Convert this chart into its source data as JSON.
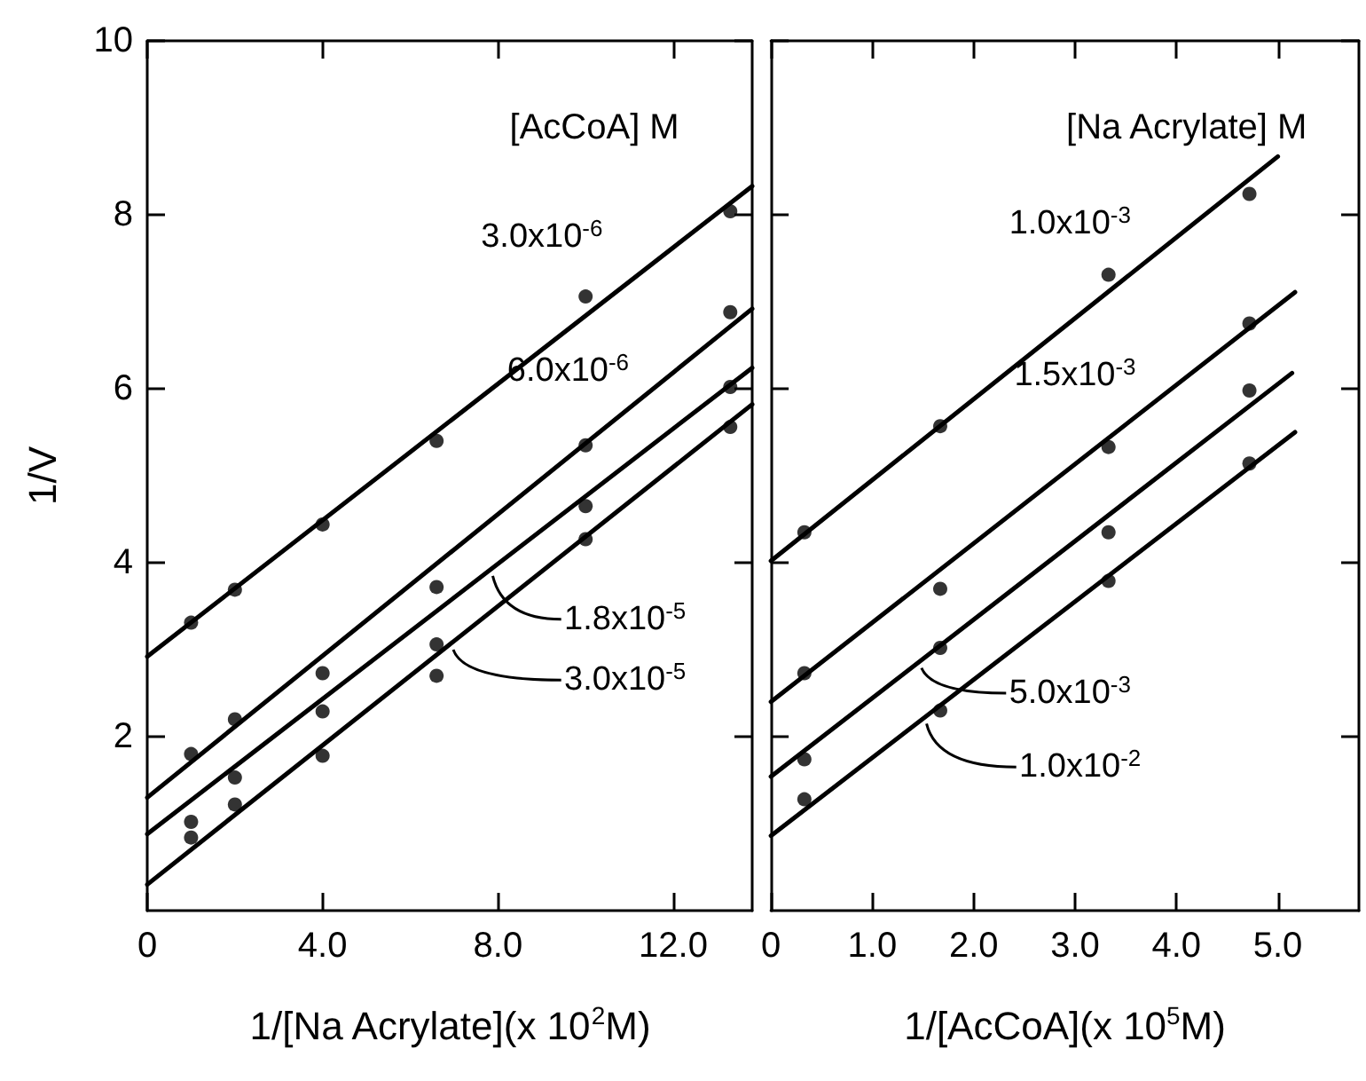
{
  "chart_data": [
    {
      "type": "scatter",
      "xlabel": "1/[Na Acrylate](x 10$^{2}$M)",
      "ylabel": "1/V",
      "legend_title": "[AcCoA] M",
      "x": [
        1.0,
        2.0,
        4.0,
        6.6,
        10.0,
        13.3
      ],
      "xlim": [
        0,
        13.8
      ],
      "xticks": [
        0,
        {
          "value": 4,
          "label": "4.0"
        },
        {
          "value": 8,
          "label": "8.0"
        },
        {
          "value": 12,
          "label": "12.0"
        }
      ],
      "ylim": [
        0,
        10
      ],
      "yticks": [
        2,
        4,
        6,
        8,
        10
      ],
      "grid": false,
      "legend": "bottom right",
      "marker": "circle",
      "line_style": "solid",
      "series": [
        {
          "name": "3.0x10$^{-6}$",
          "color": "#000000",
          "values": [
            3.31,
            3.69,
            4.44,
            5.4,
            7.06,
            8.04
          ]
        },
        {
          "name": "6.0x10$^{-6}$",
          "color": "#000000",
          "values": [
            1.8,
            2.2,
            2.73,
            3.72,
            5.35,
            6.88
          ]
        },
        {
          "name": "1.8x10$^{-5}$",
          "color": "#000000",
          "values": [
            1.02,
            1.53,
            2.29,
            3.06,
            4.65,
            6.02
          ]
        },
        {
          "name": "3.0x10$^{-5}$",
          "color": "#000000",
          "values": [
            0.84,
            1.22,
            1.78,
            2.7,
            4.27,
            5.56
          ]
        },
        {
          "type": "line",
          "marker": "none",
          "color": "#000000",
          "x": [
            0,
            13.8
          ],
          "values": [
            2.92,
            8.33
          ]
        },
        {
          "type": "line",
          "marker": "none",
          "color": "#000000",
          "x": [
            0,
            13.8
          ],
          "values": [
            1.3,
            6.92
          ]
        },
        {
          "type": "line",
          "marker": "none",
          "color": "#000000",
          "x": [
            0,
            13.8
          ],
          "values": [
            0.88,
            6.24
          ]
        },
        {
          "type": "line",
          "marker": "none",
          "color": "#000000",
          "x": [
            0,
            13.8
          ],
          "values": [
            0.3,
            5.82
          ]
        }
      ]
    },
    {
      "type": "scatter",
      "xlabel": "1/[AcCoA](x 10$^{5}$M)",
      "legend_title": "[Na Acrylate] M",
      "x": [
        0.33,
        1.67,
        3.33,
        4.72
      ],
      "xlim": [
        0,
        5.8
      ],
      "xticks": [
        0,
        {
          "value": 1,
          "label": "1.0"
        },
        {
          "value": 2,
          "label": "2.0"
        },
        {
          "value": 3,
          "label": "3.0"
        },
        {
          "value": 4,
          "label": "4.0"
        },
        {
          "value": 5,
          "label": "5.0"
        }
      ],
      "ylim": [
        0,
        10
      ],
      "yticks": [
        2,
        4,
        6,
        8,
        10
      ],
      "tick_labels": "x",
      "grid": false,
      "legend": "bottom",
      "marker": "circle",
      "line_style": "solid",
      "series": [
        {
          "name": "1.0x10$^{-3}$",
          "color": "#000000",
          "values": [
            4.35,
            5.57,
            7.31,
            8.24
          ]
        },
        {
          "name": "1.5x10$^{-3}$",
          "color": "#000000",
          "values": [
            2.73,
            3.7,
            5.33,
            6.75
          ]
        },
        {
          "name": "5.0x10$^{-3}$",
          "color": "#000000",
          "values": [
            1.74,
            3.02,
            4.35,
            5.98
          ]
        },
        {
          "name": "1.0x10$^{-2}$",
          "color": "#000000",
          "values": [
            1.28,
            2.3,
            3.79,
            5.14
          ]
        },
        {
          "type": "line",
          "marker": "none",
          "color": "#000000",
          "x": [
            0,
            5.0
          ],
          "values": [
            4.02,
            8.67
          ]
        },
        {
          "type": "line",
          "marker": "none",
          "color": "#000000",
          "x": [
            0,
            5.17
          ],
          "values": [
            2.4,
            7.11
          ]
        },
        {
          "type": "line",
          "marker": "none",
          "color": "#000000",
          "x": [
            0,
            5.14
          ],
          "values": [
            1.54,
            6.18
          ]
        },
        {
          "type": "line",
          "marker": "none",
          "color": "#000000",
          "x": [
            0,
            5.17
          ],
          "values": [
            0.86,
            5.5
          ]
        }
      ]
    }
  ]
}
